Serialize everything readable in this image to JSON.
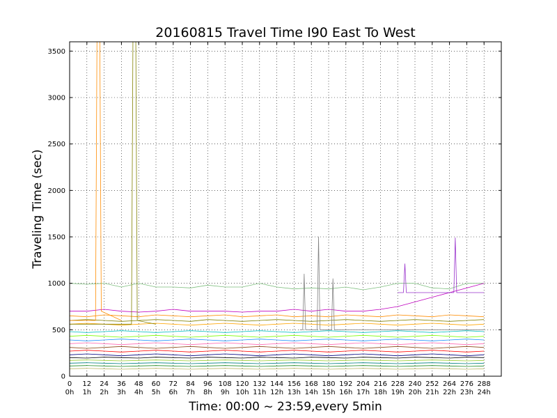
{
  "chart_data": {
    "type": "line",
    "title": "20160815 Travel Time I90 East To West",
    "xlabel": "Time: 00:00 ~ 23:59,every 5min",
    "ylabel": "Traveling Time (sec)",
    "xlim": [
      0,
      300
    ],
    "ylim": [
      0,
      3600
    ],
    "grid": true,
    "legend": "none",
    "x_ticks": [
      {
        "value": 0,
        "label": "0",
        "hour": "0h"
      },
      {
        "value": 12,
        "label": "12",
        "hour": "1h"
      },
      {
        "value": 24,
        "label": "24",
        "hour": "2h"
      },
      {
        "value": 36,
        "label": "36",
        "hour": "3h"
      },
      {
        "value": 48,
        "label": "48",
        "hour": "4h"
      },
      {
        "value": 60,
        "label": "60",
        "hour": "5h"
      },
      {
        "value": 72,
        "label": "72",
        "hour": "6h"
      },
      {
        "value": 84,
        "label": "84",
        "hour": "7h"
      },
      {
        "value": 96,
        "label": "96",
        "hour": "8h"
      },
      {
        "value": 108,
        "label": "108",
        "hour": "9h"
      },
      {
        "value": 120,
        "label": "120",
        "hour": "10h"
      },
      {
        "value": 132,
        "label": "132",
        "hour": "11h"
      },
      {
        "value": 144,
        "label": "144",
        "hour": "12h"
      },
      {
        "value": 156,
        "label": "156",
        "hour": "13h"
      },
      {
        "value": 168,
        "label": "168",
        "hour": "14h"
      },
      {
        "value": 180,
        "label": "180",
        "hour": "15h"
      },
      {
        "value": 192,
        "label": "192",
        "hour": "16h"
      },
      {
        "value": 204,
        "label": "204",
        "hour": "17h"
      },
      {
        "value": 216,
        "label": "216",
        "hour": "18h"
      },
      {
        "value": 228,
        "label": "228",
        "hour": "19h"
      },
      {
        "value": 240,
        "label": "240",
        "hour": "20h"
      },
      {
        "value": 252,
        "label": "252",
        "hour": "21h"
      },
      {
        "value": 264,
        "label": "264",
        "hour": "22h"
      },
      {
        "value": 276,
        "label": "276",
        "hour": "23h"
      },
      {
        "value": 288,
        "label": "288",
        "hour": "24h"
      }
    ],
    "y_ticks": [
      {
        "value": 0,
        "label": "0"
      },
      {
        "value": 500,
        "label": "500"
      },
      {
        "value": 1000,
        "label": "1000"
      },
      {
        "value": 1500,
        "label": "1500"
      },
      {
        "value": 2000,
        "label": "2000"
      },
      {
        "value": 2500,
        "label": "2500"
      },
      {
        "value": 3000,
        "label": "3000"
      },
      {
        "value": 3500,
        "label": "3500"
      }
    ],
    "series": [
      {
        "color": "#7fbf7f",
        "x": [
          0,
          12,
          24,
          36,
          48,
          60,
          72,
          84,
          96,
          108,
          120,
          132,
          144,
          156,
          168,
          180,
          192,
          204,
          216,
          228,
          240,
          252,
          264,
          276,
          288
        ],
        "values": [
          1000,
          990,
          1000,
          960,
          1000,
          960,
          960,
          950,
          980,
          960,
          960,
          1000,
          960,
          940,
          950,
          940,
          960,
          930,
          960,
          1000,
          1000,
          950,
          940,
          1000,
          1000
        ]
      },
      {
        "color": "#bf00bf",
        "x": [
          0,
          12,
          24,
          36,
          48,
          60,
          72,
          84,
          96,
          108,
          120,
          132,
          144,
          156,
          168,
          180,
          192,
          204,
          216,
          228,
          240,
          252,
          264,
          276,
          288
        ],
        "values": [
          700,
          700,
          720,
          700,
          690,
          700,
          720,
          700,
          700,
          700,
          690,
          700,
          700,
          720,
          700,
          720,
          700,
          700,
          720,
          750,
          800,
          850,
          900,
          950,
          1000
        ]
      },
      {
        "color": "#ff8c00",
        "x": [
          0,
          12,
          24,
          36,
          48,
          60,
          72,
          84,
          96,
          108,
          120,
          132,
          144,
          156,
          168,
          180,
          192,
          204,
          216,
          228,
          240,
          252,
          264,
          276,
          288
        ],
        "values": [
          650,
          640,
          660,
          650,
          640,
          660,
          650,
          640,
          650,
          660,
          640,
          650,
          660,
          640,
          650,
          640,
          660,
          650,
          640,
          660,
          650,
          640,
          660,
          650,
          640
        ]
      },
      {
        "color": "#808000",
        "x": [
          0,
          12,
          24,
          36,
          48,
          60,
          72,
          84,
          96,
          108,
          120,
          132,
          144,
          156,
          168,
          180,
          192,
          204,
          216,
          228,
          240,
          252,
          264,
          276,
          288
        ],
        "values": [
          600,
          610,
          600,
          590,
          600,
          610,
          600,
          590,
          610,
          600,
          590,
          600,
          610,
          600,
          590,
          600,
          610,
          600,
          590,
          600,
          610,
          600,
          590,
          600,
          610
        ]
      },
      {
        "color": "#ffa500",
        "x": [
          0,
          12,
          24,
          36,
          48,
          60,
          72,
          84,
          96,
          108,
          120,
          132,
          144,
          156,
          168,
          180,
          192,
          204,
          216,
          228,
          240,
          252,
          264,
          276,
          288
        ],
        "values": [
          560,
          570,
          560,
          550,
          560,
          570,
          560,
          550,
          560,
          570,
          560,
          550,
          560,
          570,
          560,
          550,
          560,
          570,
          560,
          550,
          560,
          570,
          560,
          550,
          560
        ]
      },
      {
        "color": "#00bfbf",
        "x": [
          0,
          12,
          24,
          36,
          48,
          60,
          72,
          84,
          96,
          108,
          120,
          132,
          144,
          156,
          168,
          180,
          192,
          204,
          216,
          228,
          240,
          252,
          264,
          276,
          288
        ],
        "values": [
          480,
          470,
          480,
          490,
          480,
          470,
          480,
          490,
          480,
          470,
          480,
          490,
          480,
          470,
          480,
          490,
          480,
          470,
          480,
          490,
          480,
          470,
          480,
          490,
          480
        ]
      },
      {
        "color": "#7cfc00",
        "x": [
          0,
          12,
          24,
          36,
          48,
          60,
          72,
          84,
          96,
          108,
          120,
          132,
          144,
          156,
          168,
          180,
          192,
          204,
          216,
          228,
          240,
          252,
          264,
          276,
          288
        ],
        "values": [
          430,
          440,
          430,
          420,
          430,
          440,
          430,
          420,
          430,
          440,
          430,
          420,
          430,
          440,
          430,
          420,
          430,
          440,
          430,
          420,
          430,
          440,
          430,
          420,
          430
        ]
      },
      {
        "color": "#1e90ff",
        "x": [
          0,
          12,
          24,
          36,
          48,
          60,
          72,
          84,
          96,
          108,
          120,
          132,
          144,
          156,
          168,
          180,
          192,
          204,
          216,
          228,
          240,
          252,
          264,
          276,
          288
        ],
        "values": [
          390,
          380,
          390,
          400,
          390,
          380,
          390,
          400,
          390,
          380,
          390,
          400,
          390,
          380,
          390,
          400,
          390,
          380,
          390,
          400,
          390,
          380,
          390,
          400,
          390
        ]
      },
      {
        "color": "#ff69b4",
        "x": [
          0,
          12,
          24,
          36,
          48,
          60,
          72,
          84,
          96,
          108,
          120,
          132,
          144,
          156,
          168,
          180,
          192,
          204,
          216,
          228,
          240,
          252,
          264,
          276,
          288
        ],
        "values": [
          350,
          360,
          350,
          340,
          350,
          360,
          350,
          340,
          350,
          360,
          350,
          340,
          350,
          360,
          350,
          340,
          350,
          360,
          350,
          340,
          350,
          360,
          350,
          340,
          350
        ]
      },
      {
        "color": "#8b4513",
        "x": [
          0,
          12,
          24,
          36,
          48,
          60,
          72,
          84,
          96,
          108,
          120,
          132,
          144,
          156,
          168,
          180,
          192,
          204,
          216,
          228,
          240,
          252,
          264,
          276,
          288
        ],
        "values": [
          310,
          300,
          310,
          320,
          310,
          300,
          310,
          320,
          310,
          300,
          310,
          320,
          310,
          300,
          310,
          320,
          310,
          300,
          310,
          320,
          310,
          300,
          310,
          320,
          310
        ]
      },
      {
        "color": "#ff0000",
        "x": [
          0,
          12,
          24,
          36,
          48,
          60,
          72,
          84,
          96,
          108,
          120,
          132,
          144,
          156,
          168,
          180,
          192,
          204,
          216,
          228,
          240,
          252,
          264,
          276,
          288
        ],
        "values": [
          270,
          280,
          270,
          260,
          270,
          280,
          270,
          260,
          270,
          280,
          270,
          260,
          270,
          280,
          270,
          260,
          270,
          280,
          270,
          260,
          270,
          280,
          270,
          260,
          270
        ]
      },
      {
        "color": "#000080",
        "x": [
          0,
          12,
          24,
          36,
          48,
          60,
          72,
          84,
          96,
          108,
          120,
          132,
          144,
          156,
          168,
          180,
          192,
          204,
          216,
          228,
          240,
          252,
          264,
          276,
          288
        ],
        "values": [
          230,
          240,
          230,
          220,
          230,
          240,
          230,
          220,
          230,
          240,
          230,
          220,
          230,
          240,
          230,
          220,
          230,
          240,
          230,
          220,
          230,
          240,
          230,
          220,
          230
        ]
      },
      {
        "color": "#000000",
        "x": [
          0,
          12,
          24,
          36,
          48,
          60,
          72,
          84,
          96,
          108,
          120,
          132,
          144,
          156,
          168,
          180,
          192,
          204,
          216,
          228,
          240,
          252,
          264,
          276,
          288
        ],
        "values": [
          200,
          195,
          205,
          200,
          195,
          205,
          200,
          195,
          205,
          200,
          195,
          205,
          200,
          195,
          205,
          200,
          195,
          205,
          200,
          195,
          205,
          200,
          195,
          205,
          200
        ]
      },
      {
        "color": "#9acd32",
        "x": [
          0,
          12,
          24,
          36,
          48,
          60,
          72,
          84,
          96,
          108,
          120,
          132,
          144,
          156,
          168,
          180,
          192,
          204,
          216,
          228,
          240,
          252,
          264,
          276,
          288
        ],
        "values": [
          170,
          175,
          170,
          165,
          170,
          175,
          170,
          165,
          170,
          175,
          170,
          165,
          170,
          175,
          170,
          165,
          170,
          175,
          170,
          165,
          170,
          175,
          170,
          165,
          170
        ]
      },
      {
        "color": "#008080",
        "x": [
          0,
          12,
          24,
          36,
          48,
          60,
          72,
          84,
          96,
          108,
          120,
          132,
          144,
          156,
          168,
          180,
          192,
          204,
          216,
          228,
          240,
          252,
          264,
          276,
          288
        ],
        "values": [
          140,
          145,
          140,
          135,
          140,
          145,
          140,
          135,
          140,
          145,
          140,
          135,
          140,
          145,
          140,
          135,
          140,
          145,
          140,
          135,
          140,
          145,
          140,
          135,
          140
        ]
      },
      {
        "color": "#228b22",
        "x": [
          0,
          12,
          24,
          36,
          48,
          60,
          72,
          84,
          96,
          108,
          120,
          132,
          144,
          156,
          168,
          180,
          192,
          204,
          216,
          228,
          240,
          252,
          264,
          276,
          288
        ],
        "values": [
          110,
          115,
          110,
          105,
          110,
          115,
          110,
          105,
          110,
          115,
          110,
          105,
          110,
          115,
          110,
          105,
          110,
          115,
          110,
          105,
          110,
          115,
          110,
          105,
          110
        ]
      },
      {
        "color": "#bdb76b",
        "x": [
          0,
          12,
          24,
          36,
          48,
          60,
          72,
          84,
          96,
          108,
          120,
          132,
          144,
          156,
          168,
          180,
          192,
          204,
          216,
          228,
          240,
          252,
          264,
          276,
          288
        ],
        "values": [
          80,
          85,
          80,
          75,
          80,
          85,
          80,
          75,
          80,
          85,
          80,
          75,
          80,
          85,
          80,
          75,
          80,
          85,
          80,
          75,
          80,
          85,
          80,
          75,
          80
        ]
      },
      {
        "color": "#ff8c00",
        "x": [
          0,
          18,
          19,
          20,
          21,
          22,
          36
        ],
        "values": [
          600,
          600,
          3600,
          3600,
          3600,
          700,
          600
        ]
      },
      {
        "color": "#808000",
        "x": [
          0,
          43,
          44,
          45,
          46,
          47,
          60
        ],
        "values": [
          560,
          560,
          3600,
          3600,
          3600,
          600,
          560
        ]
      },
      {
        "color": "#808080",
        "x": [
          160,
          162,
          163,
          164,
          170,
          172,
          173,
          174,
          180,
          182,
          183,
          184,
          288
        ],
        "values": [
          500,
          500,
          1100,
          500,
          500,
          500,
          1500,
          500,
          500,
          500,
          1050,
          500,
          500
        ]
      },
      {
        "color": "#9932cc",
        "x": [
          228,
          232,
          233,
          234,
          265,
          267,
          268,
          269,
          288
        ],
        "values": [
          900,
          900,
          1210,
          900,
          900,
          900,
          1490,
          900,
          900
        ]
      }
    ]
  }
}
